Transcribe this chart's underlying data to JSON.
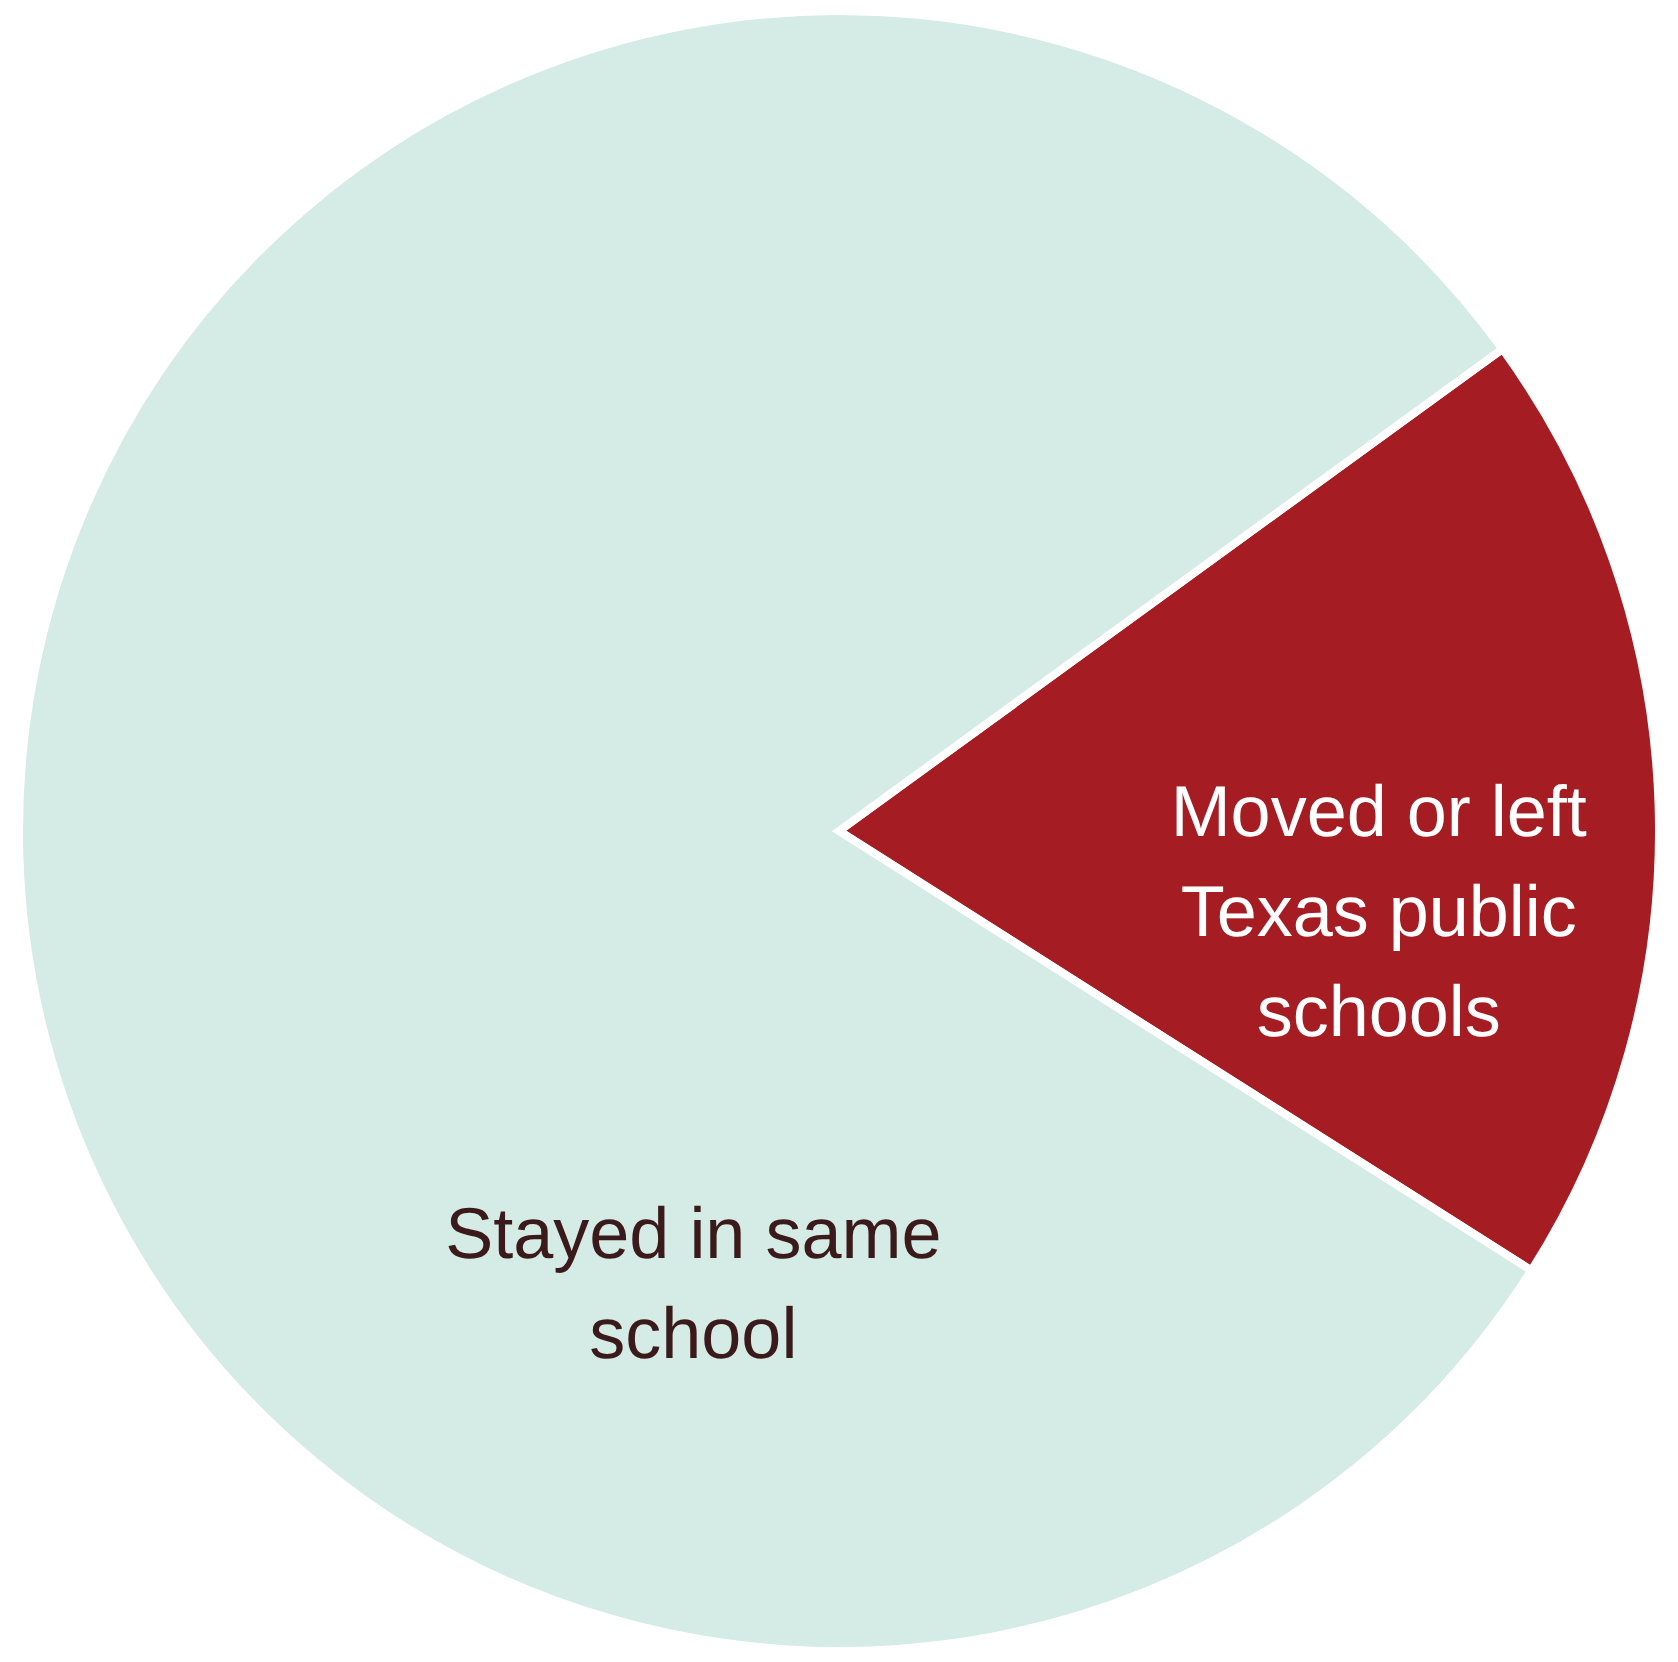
{
  "chart_data": {
    "type": "pie",
    "categories": [
      "Moved or left Texas public schools",
      "Stayed in same school"
    ],
    "values": [
      19,
      81
    ],
    "colors": [
      "#a51c22",
      "#d5ebe5"
    ]
  }
}
